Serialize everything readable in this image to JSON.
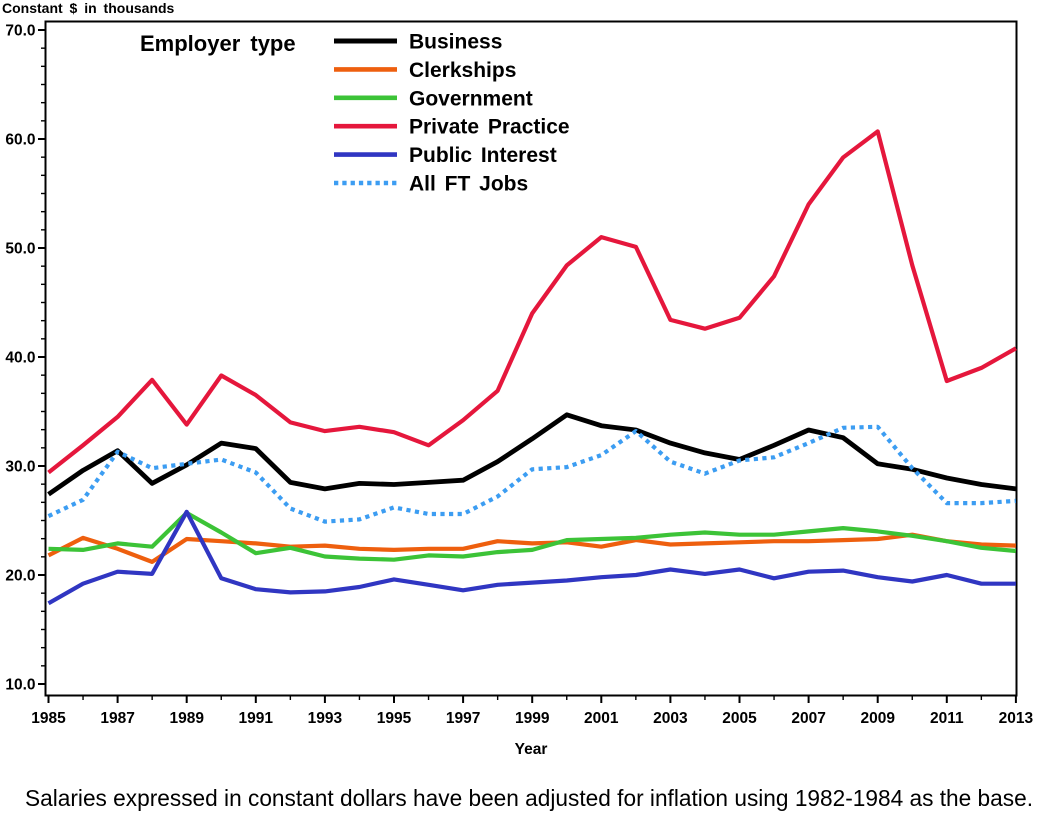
{
  "caption": "Salaries expressed in constant dollars have been adjusted for inflation using 1982-1984 as the base.",
  "chart_data": {
    "type": "line",
    "ylabel": "Constant $ in thousands",
    "xlabel": "Year",
    "legend_title": "Employer type",
    "legend_position": "top-left-inside",
    "grid": false,
    "ylim": [
      10.0,
      70.0
    ],
    "y_ticks": [
      10.0,
      20.0,
      30.0,
      40.0,
      50.0,
      60.0,
      70.0
    ],
    "y_tick_labels": [
      "10.0",
      "20.0",
      "30.0",
      "40.0",
      "50.0",
      "60.0",
      "70.0"
    ],
    "y_minor_divisions": 6,
    "x_labeled_ticks": [
      1985,
      1987,
      1989,
      1991,
      1993,
      1995,
      1997,
      1999,
      2001,
      2003,
      2005,
      2007,
      2009,
      2011,
      2013
    ],
    "x": [
      1985,
      1986,
      1987,
      1988,
      1989,
      1990,
      1991,
      1992,
      1993,
      1994,
      1995,
      1996,
      1997,
      1998,
      1999,
      2000,
      2001,
      2002,
      2003,
      2004,
      2005,
      2006,
      2007,
      2008,
      2009,
      2010,
      2011,
      2012,
      2013
    ],
    "series": [
      {
        "name": "Business",
        "color": "#000000",
        "style": "solid",
        "values": [
          27.4,
          29.6,
          31.4,
          28.4,
          30.1,
          32.1,
          31.6,
          28.5,
          27.9,
          28.4,
          28.3,
          28.5,
          28.7,
          30.4,
          32.5,
          34.7,
          33.7,
          33.3,
          32.1,
          31.2,
          30.6,
          31.9,
          33.3,
          32.6,
          30.2,
          29.7,
          28.9,
          28.3,
          27.9
        ]
      },
      {
        "name": "Clerkships",
        "color": "#EE5F0E",
        "style": "solid",
        "values": [
          21.8,
          23.4,
          22.4,
          21.2,
          23.3,
          23.1,
          22.9,
          22.6,
          22.7,
          22.4,
          22.3,
          22.4,
          22.4,
          23.1,
          22.9,
          23.0,
          22.6,
          23.2,
          22.8,
          22.9,
          23.0,
          23.1,
          23.1,
          23.2,
          23.3,
          23.7,
          23.1,
          22.8,
          22.7
        ]
      },
      {
        "name": "Government",
        "color": "#3CC337",
        "style": "solid",
        "values": [
          22.4,
          22.3,
          22.9,
          22.6,
          25.7,
          23.9,
          22.0,
          22.5,
          21.7,
          21.5,
          21.4,
          21.8,
          21.7,
          22.1,
          22.3,
          23.2,
          23.3,
          23.4,
          23.7,
          23.9,
          23.7,
          23.7,
          24.0,
          24.3,
          24.0,
          23.6,
          23.1,
          22.5,
          22.2
        ]
      },
      {
        "name": "Private Practice",
        "color": "#E5173C",
        "style": "solid",
        "values": [
          29.4,
          31.9,
          34.5,
          37.9,
          33.8,
          38.3,
          36.5,
          34.0,
          33.2,
          33.6,
          33.1,
          31.9,
          34.2,
          36.9,
          44.0,
          48.4,
          51.0,
          50.1,
          43.4,
          42.6,
          43.6,
          47.4,
          54.0,
          58.3,
          60.7,
          48.4,
          37.8,
          39.0,
          40.8
        ]
      },
      {
        "name": "Public Interest",
        "color": "#3036C2",
        "style": "solid",
        "values": [
          17.4,
          19.2,
          20.3,
          20.1,
          25.8,
          19.7,
          18.7,
          18.4,
          18.5,
          18.9,
          19.6,
          19.1,
          18.6,
          19.1,
          19.3,
          19.5,
          19.8,
          20.0,
          20.5,
          20.1,
          20.5,
          19.7,
          20.3,
          20.4,
          19.8,
          19.4,
          20.0,
          19.2,
          19.2
        ]
      },
      {
        "name": "All FT Jobs",
        "color": "#3C9DF2",
        "style": "dotted",
        "values": [
          25.4,
          26.9,
          31.3,
          29.8,
          30.2,
          30.6,
          29.4,
          26.1,
          24.9,
          25.1,
          26.2,
          25.6,
          25.6,
          27.2,
          29.7,
          29.9,
          31.0,
          33.2,
          30.4,
          29.3,
          30.5,
          30.8,
          32.1,
          33.5,
          33.6,
          29.8,
          26.6,
          26.6,
          26.8
        ]
      }
    ]
  }
}
